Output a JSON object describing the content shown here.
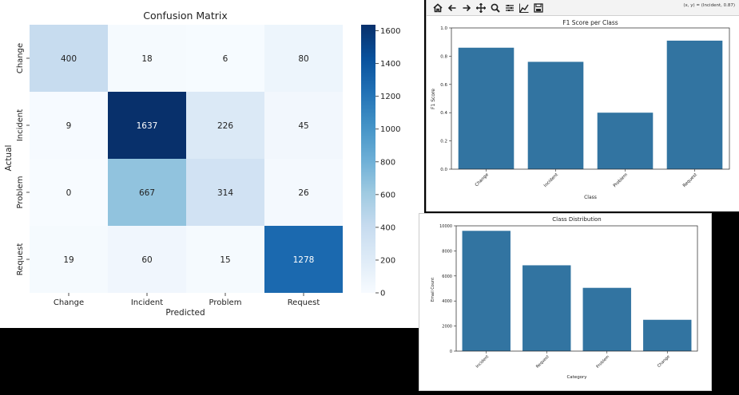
{
  "toolbar": {
    "icons": [
      "home-icon",
      "back-arrow-icon",
      "forward-arrow-icon",
      "pan-icon",
      "zoom-icon",
      "subplots-icon",
      "edit-axis-icon",
      "save-icon"
    ],
    "coord_readout": "(x, y) = (Incident, 0.87)"
  },
  "chart_data": [
    {
      "type": "heatmap",
      "title": "Confusion Matrix",
      "xlabel": "Predicted",
      "ylabel": "Actual",
      "x": [
        "Change",
        "Incident",
        "Problem",
        "Request"
      ],
      "y": [
        "Change",
        "Incident",
        "Problem",
        "Request"
      ],
      "values": [
        [
          400,
          18,
          6,
          80
        ],
        [
          9,
          1637,
          226,
          45
        ],
        [
          0,
          667,
          314,
          26
        ],
        [
          19,
          60,
          15,
          1278
        ]
      ],
      "colormap": "Blues",
      "colorbar": {
        "min": 0,
        "max": 1637,
        "ticks": [
          0,
          200,
          400,
          600,
          800,
          1000,
          1200,
          1400,
          1600
        ]
      }
    },
    {
      "type": "bar",
      "title": "F1 Score per Class",
      "xlabel": "Class",
      "ylabel": "F1 Score",
      "categories": [
        "Change",
        "Incident",
        "Problem",
        "Request"
      ],
      "values": [
        0.86,
        0.76,
        0.4,
        0.91
      ],
      "ylim": [
        0,
        1.0
      ],
      "yticks": [
        0.0,
        0.2,
        0.4,
        0.6,
        0.8,
        1.0
      ],
      "bar_color": "#3274a1"
    },
    {
      "type": "bar",
      "title": "Class Distribution",
      "xlabel": "Category",
      "ylabel": "Email Count",
      "categories": [
        "Incident",
        "Request",
        "Problem",
        "Change"
      ],
      "values": [
        9600,
        6850,
        5050,
        2500
      ],
      "ylim": [
        0,
        10000
      ],
      "yticks": [
        0,
        2000,
        4000,
        6000,
        8000,
        10000
      ],
      "bar_color": "#3274a1"
    }
  ]
}
